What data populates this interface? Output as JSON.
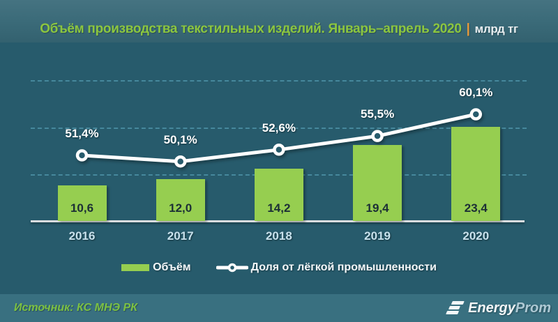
{
  "header": {
    "title": "Объём производства текстильных изделий. Январь–апрель 2020",
    "separator": "|",
    "units": "млрд тг"
  },
  "chart_data": {
    "type": "bar",
    "subtype": "bar-and-line-combo",
    "title": "Объём производства текстильных изделий. Январь–апрель 2020",
    "units": "млрд тг",
    "categories": [
      "2016",
      "2017",
      "2018",
      "2019",
      "2020"
    ],
    "series": [
      {
        "name": "Объём",
        "type": "bar",
        "values": [
          10.6,
          12.0,
          14.2,
          19.4,
          23.4
        ],
        "labels": [
          "10,6",
          "12,0",
          "14,2",
          "19,4",
          "23,4"
        ],
        "color": "#96ce50"
      },
      {
        "name": "Доля от лёгкой промышленности",
        "type": "line",
        "values": [
          51.4,
          50.1,
          52.6,
          55.5,
          60.1
        ],
        "labels": [
          "51,4%",
          "50,1%",
          "52,6%",
          "55,5%",
          "60,1%"
        ],
        "color": "#ffffff"
      }
    ],
    "grid": "horizontal-dashed",
    "legend_position": "bottom"
  },
  "legend": {
    "bar_label": "Объём",
    "line_label": "Доля от лёгкой промышленности"
  },
  "footer": {
    "source": "Источник: КС МНЭ РК",
    "logo_energy": "Energy",
    "logo_prom": "Prom"
  },
  "colors": {
    "background": "#275b6c",
    "header_background": "#3a6a78",
    "footer_background": "#397080",
    "title_green": "#8cc63f",
    "separator_orange": "#e79a3b",
    "bar_green": "#96ce50",
    "line_white": "#ffffff",
    "gridline_blue": "#4c90a5",
    "axis_gray": "#d9dddf",
    "year_label_blue": "#c7e1ec",
    "source_green": "#7cc143"
  }
}
